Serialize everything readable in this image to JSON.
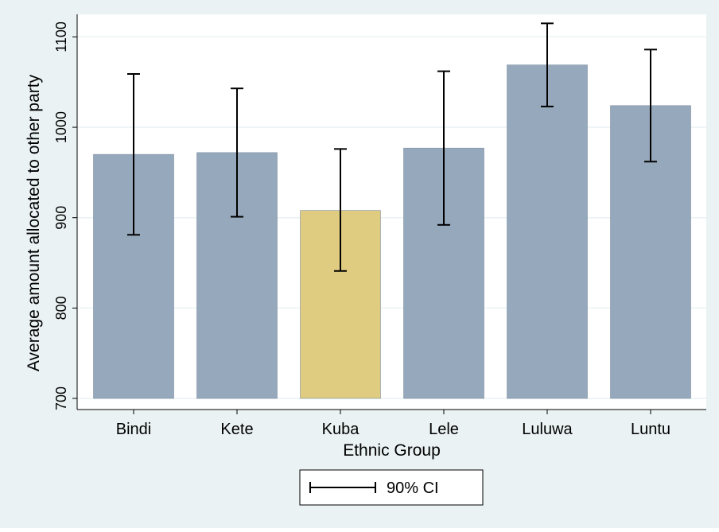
{
  "chart_data": {
    "type": "bar",
    "xlabel": "Ethnic Group",
    "ylabel": "Average amount allocated to other party",
    "categories": [
      "Bindi",
      "Kete",
      "Kuba",
      "Lele",
      "Luluwa",
      "Luntu"
    ],
    "values": [
      970,
      972,
      908,
      977,
      1069,
      1024
    ],
    "ci_lower": [
      881,
      901,
      841,
      892,
      1023,
      962
    ],
    "ci_upper": [
      1059,
      1043,
      976,
      1062,
      1115,
      1086
    ],
    "highlight_category": "Kuba",
    "yticks": [
      700,
      800,
      900,
      1000,
      1100
    ],
    "ylim": [
      700,
      1125
    ],
    "grid": true,
    "legend": {
      "label": "90% CI",
      "position": "bottom-center"
    },
    "colors": {
      "bar": "#96a8bb",
      "bar_highlight": "#e0cc80",
      "background": "#eaf2f3",
      "plot": "#ffffff",
      "errorbar": "#000000"
    }
  }
}
